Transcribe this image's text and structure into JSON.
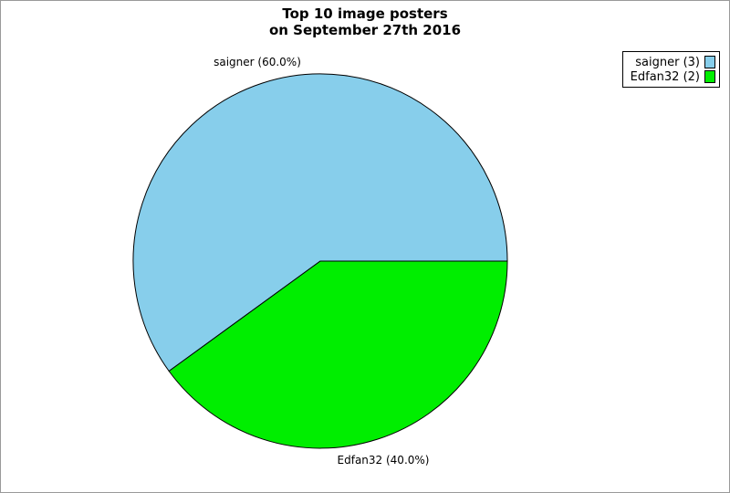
{
  "frame": {
    "background": "#ffffff",
    "border_color": "#9a9a9a"
  },
  "title": {
    "line1": "Top 10 image posters",
    "line2": "on September 27th 2016"
  },
  "chart_data": {
    "type": "pie",
    "title": "Top 10 image posters\non September 27th 2016",
    "start_angle_deg": 0,
    "direction": "ccw",
    "stroke_color": "#000000",
    "legend_position": "top-right",
    "slices": [
      {
        "label": "saigner",
        "value": 3,
        "percent": 60.0,
        "color": "#87ceeb",
        "callout": "saigner (60.0%)",
        "legend": "saigner (3)"
      },
      {
        "label": "Edfan32",
        "value": 2,
        "percent": 40.0,
        "color": "#00ee00",
        "callout": "Edfan32 (40.0%)",
        "legend": "Edfan32 (2)"
      }
    ]
  }
}
